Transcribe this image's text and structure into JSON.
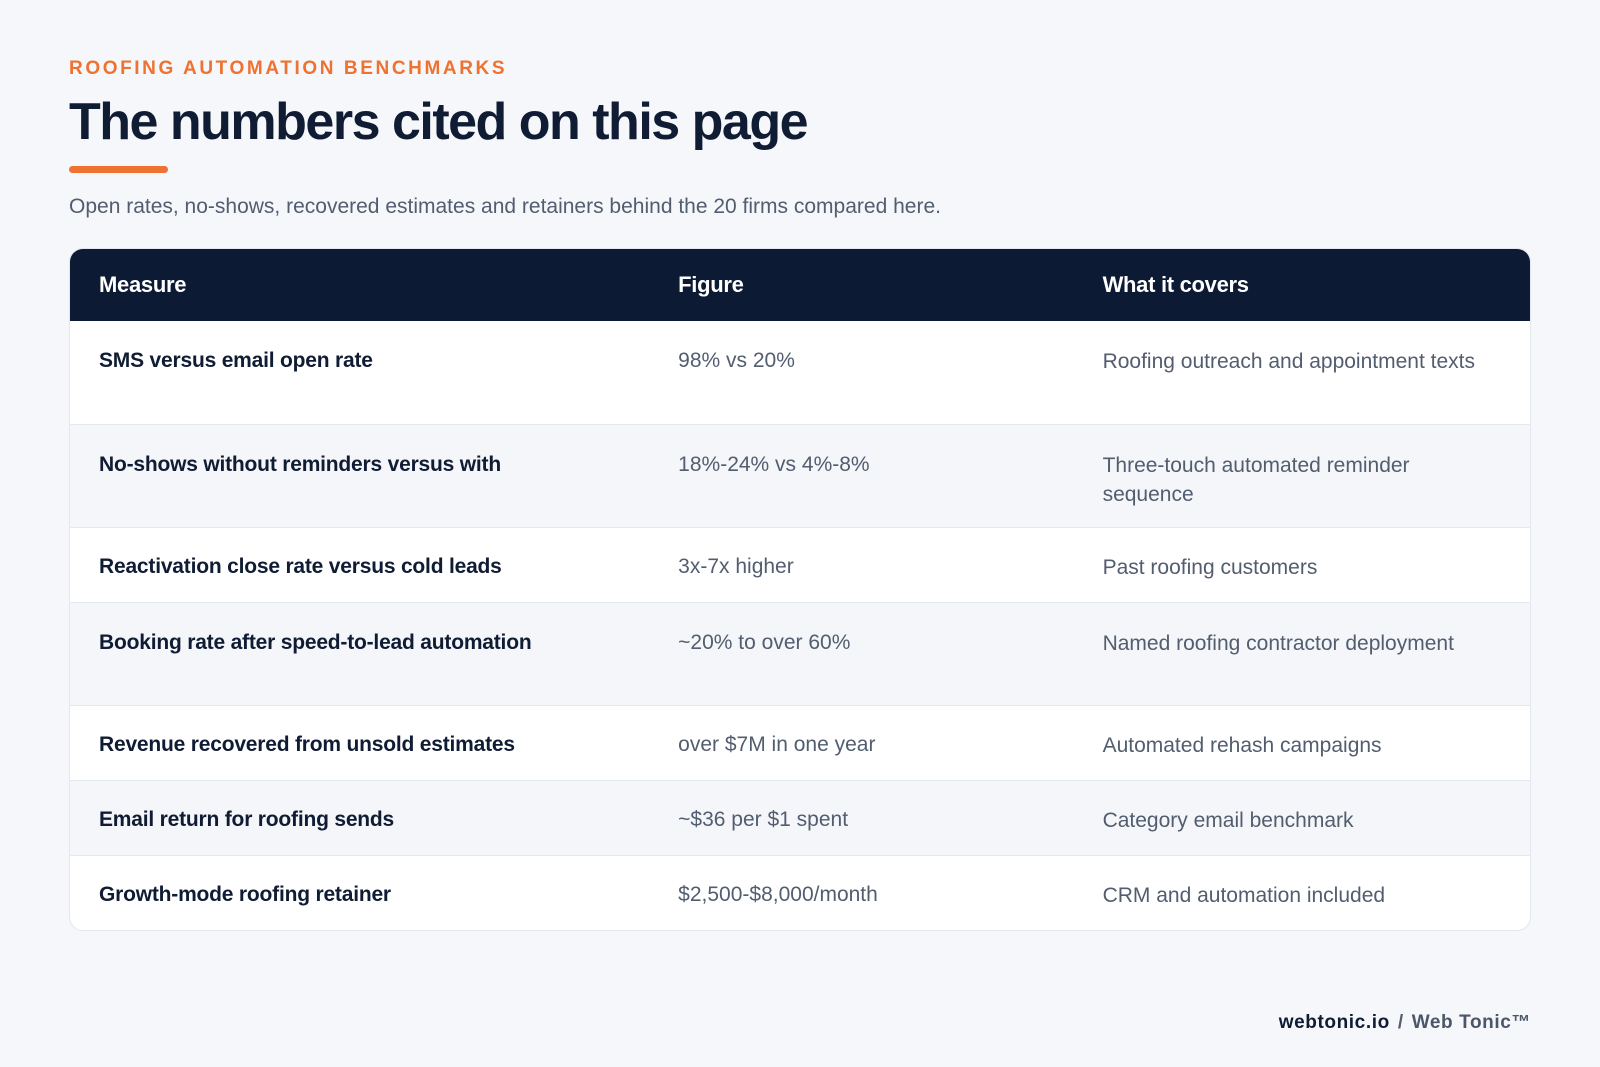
{
  "header": {
    "eyebrow": "ROOFING AUTOMATION BENCHMARKS",
    "title": "The numbers cited on this page",
    "subtitle": "Open rates, no-shows, recovered estimates and retainers behind the 20 firms compared here."
  },
  "table": {
    "columns": [
      "Measure",
      "Figure",
      "What it covers"
    ],
    "rows": [
      {
        "measure": "SMS versus email open rate",
        "figure": "98% vs 20%",
        "covers": "Roofing outreach and appointment texts"
      },
      {
        "measure": "No-shows without reminders versus with",
        "figure": "18%-24% vs 4%-8%",
        "covers": "Three-touch automated reminder sequence"
      },
      {
        "measure": "Reactivation close rate versus cold leads",
        "figure": "3x-7x higher",
        "covers": "Past roofing customers"
      },
      {
        "measure": "Booking rate after speed-to-lead automation",
        "figure": "~20% to over 60%",
        "covers": "Named roofing contractor deployment"
      },
      {
        "measure": "Revenue recovered from unsold estimates",
        "figure": "over $7M in one year",
        "covers": "Automated rehash campaigns"
      },
      {
        "measure": "Email return for roofing sends",
        "figure": "~$36 per $1 spent",
        "covers": "Category email benchmark"
      },
      {
        "measure": "Growth-mode roofing retainer",
        "figure": "$2,500-$8,000/month",
        "covers": "CRM and automation included"
      }
    ]
  },
  "footer": {
    "domain": "webtonic.io",
    "separator": "/",
    "brand": "Web Tonic™"
  },
  "colors": {
    "accent": "#ef7230",
    "header_bg": "#0c1a33",
    "page_bg": "#f5f7fa",
    "text_dark": "#0f1c33",
    "text_muted": "#525d6f"
  }
}
